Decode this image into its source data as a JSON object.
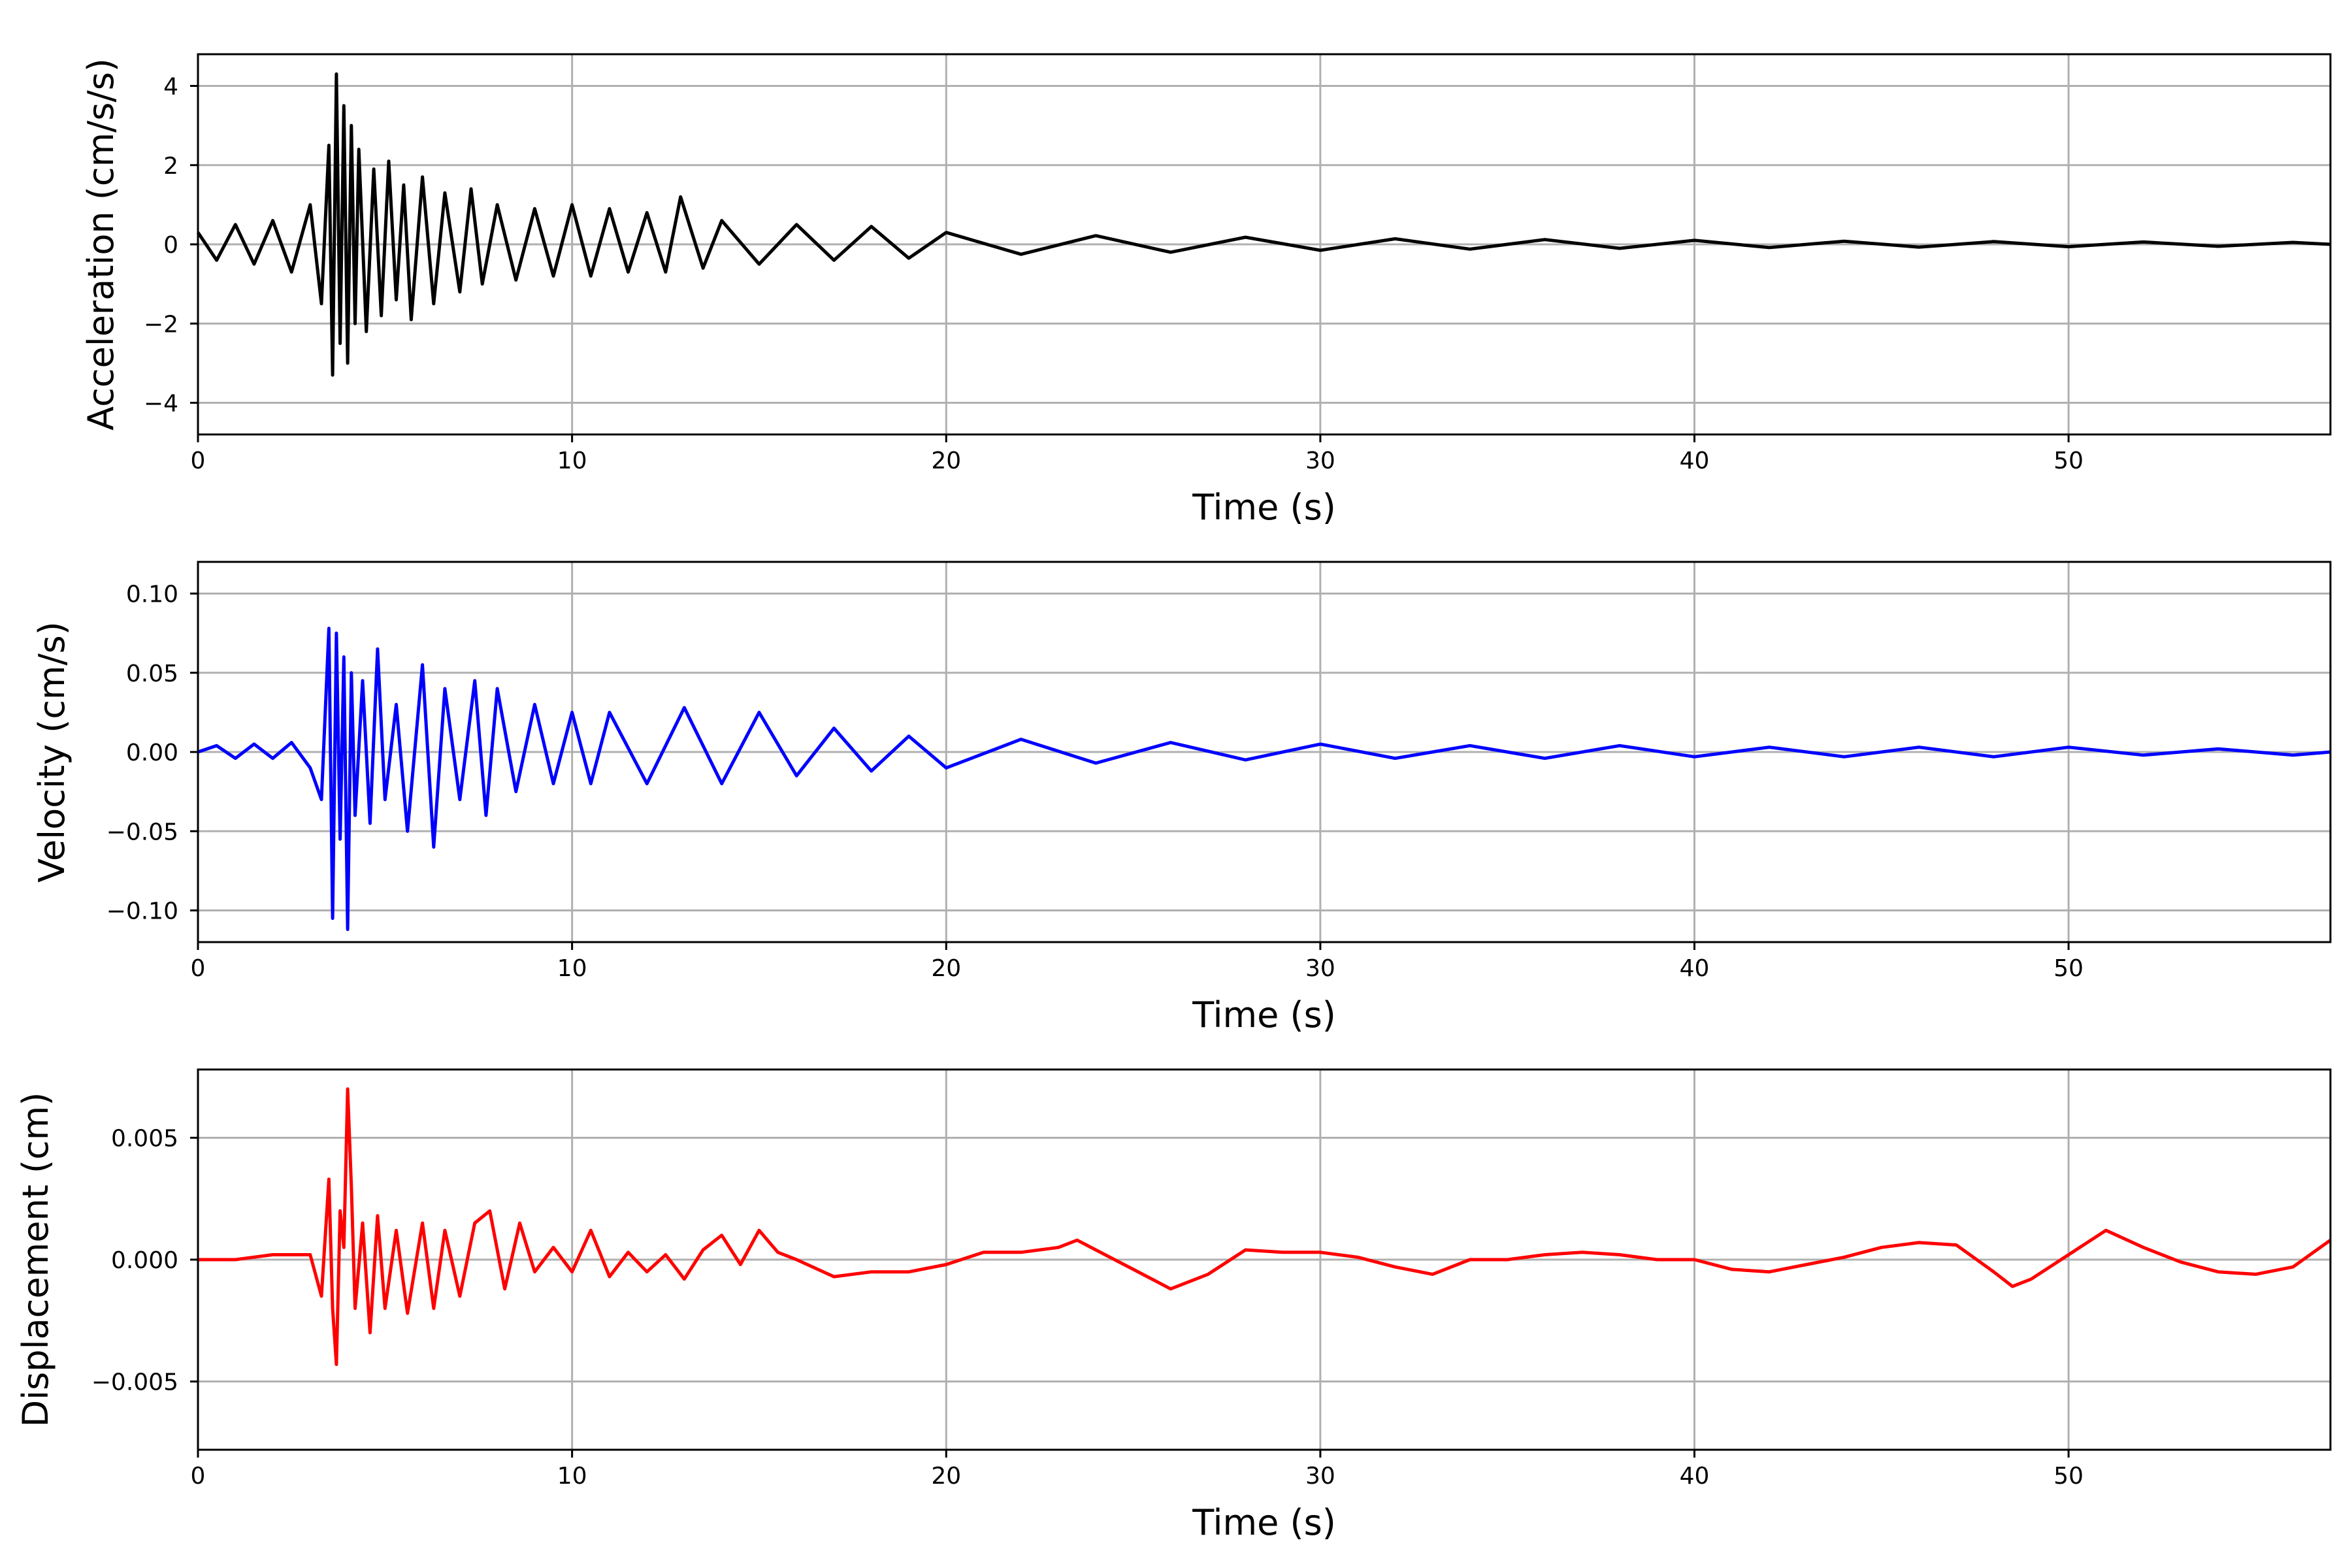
{
  "chart_data": [
    {
      "type": "line",
      "title": "",
      "xlabel": "Time (s)",
      "ylabel": "Acceleration (cm/s/s)",
      "xlim": [
        0,
        57
      ],
      "ylim": [
        -4.8,
        4.8
      ],
      "xticks": [
        0,
        10,
        20,
        30,
        40,
        50
      ],
      "yticks": [
        -4,
        -2,
        0,
        2,
        4
      ],
      "ytick_labels": [
        "−4",
        "−2",
        "0",
        "2",
        "4"
      ],
      "grid": true,
      "color": "#000000",
      "series": [
        {
          "x": [
            0,
            0.5,
            1,
            1.5,
            2,
            2.5,
            3,
            3.3,
            3.5,
            3.6,
            3.7,
            3.8,
            3.9,
            4.0,
            4.1,
            4.2,
            4.3,
            4.5,
            4.7,
            4.9,
            5.1,
            5.3,
            5.5,
            5.7,
            6.0,
            6.3,
            6.6,
            7.0,
            7.3,
            7.6,
            8.0,
            8.5,
            9.0,
            9.5,
            10,
            10.5,
            11,
            11.5,
            12,
            12.5,
            12.9,
            13.5,
            14,
            15,
            16,
            17,
            18,
            19,
            20,
            22,
            24,
            26,
            28,
            30,
            32,
            34,
            36,
            38,
            40,
            42,
            44,
            46,
            48,
            50,
            52,
            54,
            56,
            57
          ],
          "y": [
            0.3,
            -0.4,
            0.5,
            -0.5,
            0.6,
            -0.7,
            1.0,
            -1.5,
            2.5,
            -3.3,
            4.3,
            -2.5,
            3.5,
            -3.0,
            3.0,
            -2.0,
            2.4,
            -2.2,
            1.9,
            -1.8,
            2.1,
            -1.4,
            1.5,
            -1.9,
            1.7,
            -1.5,
            1.3,
            -1.2,
            1.4,
            -1.0,
            1.0,
            -0.9,
            0.9,
            -0.8,
            1.0,
            -0.8,
            0.9,
            -0.7,
            0.8,
            -0.7,
            1.2,
            -0.6,
            0.6,
            -0.5,
            0.5,
            -0.4,
            0.45,
            -0.35,
            0.3,
            -0.25,
            0.22,
            -0.2,
            0.18,
            -0.15,
            0.14,
            -0.12,
            0.12,
            -0.1,
            0.1,
            -0.08,
            0.08,
            -0.07,
            0.07,
            -0.06,
            0.06,
            -0.05,
            0.05,
            0.0
          ]
        }
      ]
    },
    {
      "type": "line",
      "title": "",
      "xlabel": "Time (s)",
      "ylabel": "Velocity (cm/s)",
      "xlim": [
        0,
        57
      ],
      "ylim": [
        -0.12,
        0.12
      ],
      "xticks": [
        0,
        10,
        20,
        30,
        40,
        50
      ],
      "yticks": [
        -0.1,
        -0.05,
        0.0,
        0.05,
        0.1
      ],
      "ytick_labels": [
        "−0.10",
        "−0.05",
        "0.00",
        "0.05",
        "0.10"
      ],
      "grid": true,
      "color": "#0000ff",
      "series": [
        {
          "x": [
            0,
            0.5,
            1,
            1.5,
            2,
            2.5,
            3,
            3.3,
            3.5,
            3.6,
            3.7,
            3.8,
            3.9,
            4.0,
            4.1,
            4.2,
            4.4,
            4.6,
            4.8,
            5.0,
            5.3,
            5.6,
            6.0,
            6.3,
            6.6,
            7.0,
            7.4,
            7.7,
            8.0,
            8.5,
            9.0,
            9.5,
            10,
            10.5,
            11,
            12,
            13,
            14,
            15,
            16,
            17,
            18,
            19,
            20,
            22,
            24,
            26,
            28,
            30,
            32,
            34,
            36,
            38,
            40,
            42,
            44,
            46,
            48,
            50,
            52,
            54,
            56,
            57
          ],
          "y": [
            0.0,
            0.004,
            -0.004,
            0.005,
            -0.004,
            0.006,
            -0.01,
            -0.03,
            0.078,
            -0.105,
            0.075,
            -0.055,
            0.06,
            -0.112,
            0.05,
            -0.04,
            0.045,
            -0.045,
            0.065,
            -0.03,
            0.03,
            -0.05,
            0.055,
            -0.06,
            0.04,
            -0.03,
            0.045,
            -0.04,
            0.04,
            -0.025,
            0.03,
            -0.02,
            0.025,
            -0.02,
            0.025,
            -0.02,
            0.028,
            -0.02,
            0.025,
            -0.015,
            0.015,
            -0.012,
            0.01,
            -0.01,
            0.008,
            -0.007,
            0.006,
            -0.005,
            0.005,
            -0.004,
            0.004,
            -0.004,
            0.004,
            -0.003,
            0.003,
            -0.003,
            0.003,
            -0.003,
            0.003,
            -0.002,
            0.002,
            -0.002,
            0.0
          ]
        }
      ]
    },
    {
      "type": "line",
      "title": "",
      "xlabel": "Time (s)",
      "ylabel": "Displacement (cm)",
      "xlim": [
        0,
        57
      ],
      "ylim": [
        -0.0078,
        0.0078
      ],
      "xticks": [
        0,
        10,
        20,
        30,
        40,
        50
      ],
      "yticks": [
        -0.005,
        0.0,
        0.005
      ],
      "ytick_labels": [
        "−0.005",
        "0.000",
        "0.005"
      ],
      "grid": true,
      "color": "#ff0000",
      "series": [
        {
          "x": [
            0,
            1,
            2,
            3,
            3.3,
            3.5,
            3.6,
            3.7,
            3.8,
            3.9,
            4.0,
            4.1,
            4.2,
            4.4,
            4.6,
            4.8,
            5.0,
            5.3,
            5.6,
            6.0,
            6.3,
            6.6,
            7.0,
            7.4,
            7.8,
            8.2,
            8.6,
            9.0,
            9.5,
            10,
            10.5,
            11,
            11.5,
            12,
            12.5,
            13,
            13.5,
            14,
            14.5,
            15,
            15.5,
            16,
            17,
            18,
            19,
            20,
            21,
            22,
            23,
            23.5,
            24,
            25,
            26,
            27,
            28,
            29,
            30,
            31,
            32,
            33,
            34,
            35,
            36,
            37,
            38,
            39,
            40,
            41,
            42,
            43,
            44,
            45,
            46,
            47,
            48,
            48.5,
            49,
            50,
            51,
            52,
            53,
            54,
            55,
            56,
            57
          ],
          "y": [
            0.0,
            0.0,
            0.0002,
            0.0002,
            -0.0015,
            0.0033,
            -0.002,
            -0.0043,
            0.002,
            0.0005,
            0.007,
            0.003,
            -0.002,
            0.0015,
            -0.003,
            0.0018,
            -0.002,
            0.0012,
            -0.0022,
            0.0015,
            -0.002,
            0.0012,
            -0.0015,
            0.0015,
            0.002,
            -0.0012,
            0.0015,
            -0.0005,
            0.0005,
            -0.0005,
            0.0012,
            -0.0007,
            0.0003,
            -0.0005,
            0.0002,
            -0.0008,
            0.0004,
            0.001,
            -0.0002,
            0.0012,
            0.0003,
            0.0,
            -0.0007,
            -0.0005,
            -0.0005,
            -0.0002,
            0.0003,
            0.0003,
            0.0005,
            0.0008,
            0.0004,
            -0.0004,
            -0.0012,
            -0.0006,
            0.0004,
            0.0003,
            0.0003,
            0.0001,
            -0.0003,
            -0.0006,
            0.0,
            0.0,
            0.0002,
            0.0003,
            0.0002,
            0.0,
            0.0,
            -0.0004,
            -0.0005,
            -0.0002,
            0.0001,
            0.0005,
            0.0007,
            0.0006,
            -0.0005,
            -0.0011,
            -0.0008,
            0.0002,
            0.0012,
            0.0005,
            -0.0001,
            -0.0005,
            -0.0006,
            -0.0003,
            0.0008
          ]
        }
      ]
    }
  ]
}
